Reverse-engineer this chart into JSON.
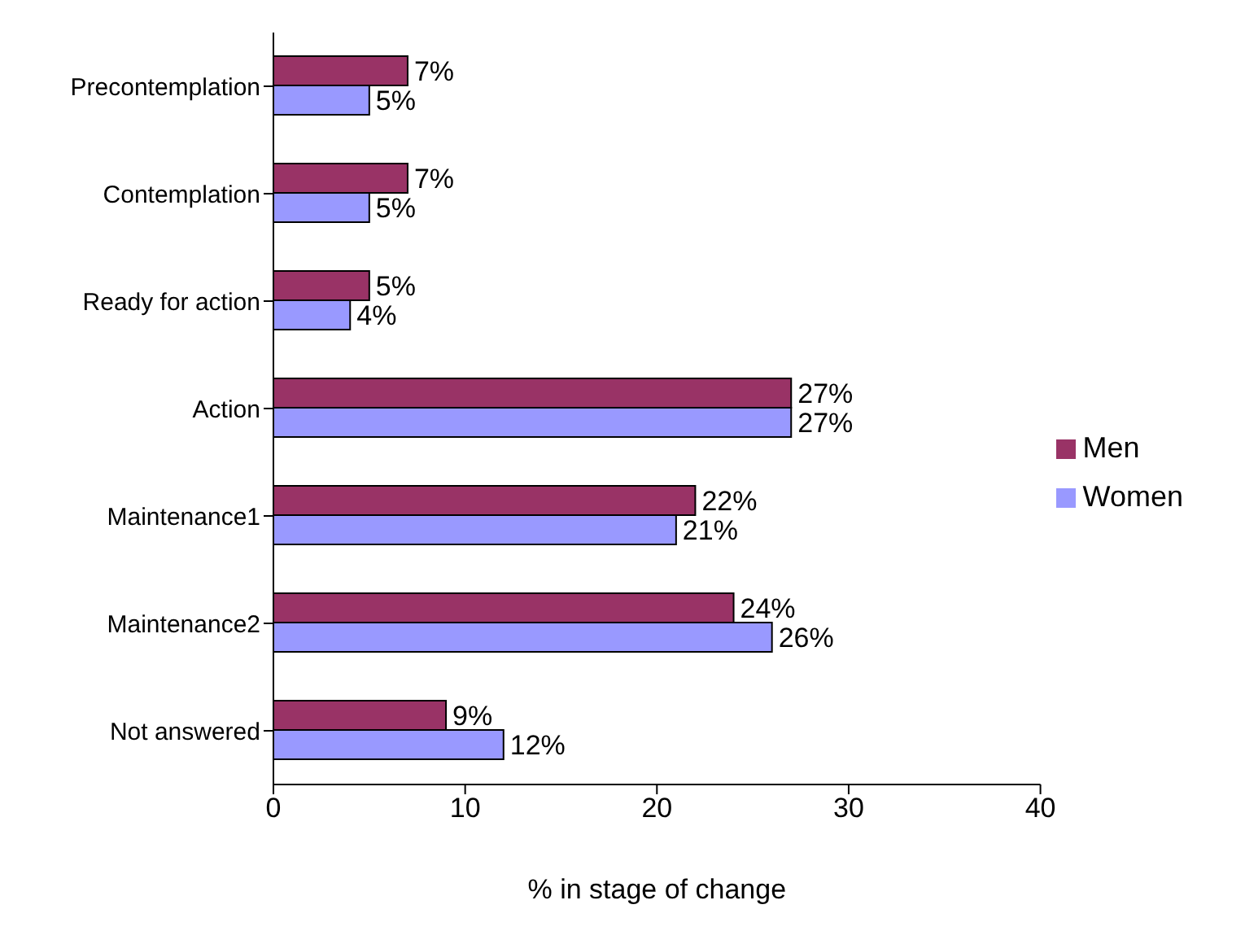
{
  "chart_data": {
    "type": "bar",
    "orientation": "horizontal",
    "xlabel": "% in stage of change",
    "categories": [
      "Precontemplation",
      "Contemplation",
      "Ready for action",
      "Action",
      "Maintenance1",
      "Maintenance2",
      "Not answered"
    ],
    "series": [
      {
        "name": "Men",
        "color": "#993366",
        "values": [
          7,
          7,
          5,
          27,
          22,
          24,
          9
        ],
        "value_labels": [
          "7%",
          "7%",
          "5%",
          "27%",
          "22%",
          "24%",
          "9%"
        ]
      },
      {
        "name": "Women",
        "color": "#9999ff",
        "values": [
          5,
          5,
          4,
          27,
          21,
          26,
          12
        ],
        "value_labels": [
          "5%",
          "5%",
          "4%",
          "27%",
          "21%",
          "26%",
          "12%"
        ]
      }
    ],
    "xlim": [
      0,
      40
    ],
    "xticks": [
      0,
      10,
      20,
      30,
      40
    ],
    "grid": false,
    "legend": "right"
  }
}
